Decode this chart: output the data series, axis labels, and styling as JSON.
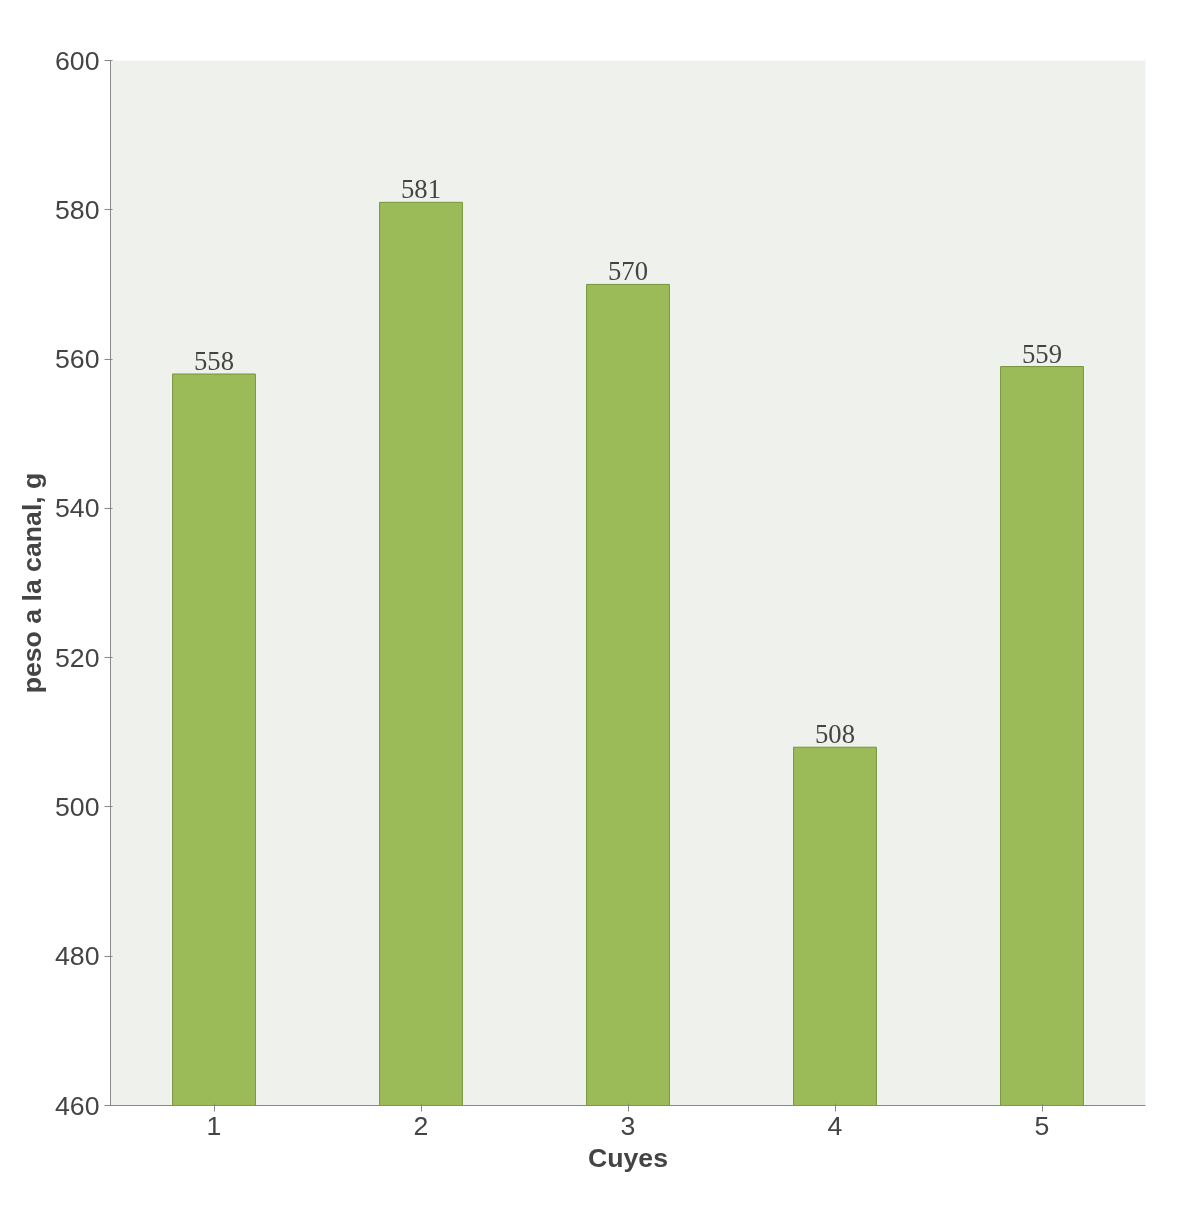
{
  "chart_data": {
    "type": "bar",
    "xlabel": "Cuyes",
    "ylabel": "peso a la canal, g",
    "categories": [
      "1",
      "2",
      "3",
      "4",
      "5"
    ],
    "values": [
      558,
      581,
      570,
      508,
      559
    ],
    "color": "#9bbb59",
    "ylim": [
      460,
      600
    ],
    "yticks": [
      460,
      480,
      500,
      520,
      540,
      560,
      580,
      600
    ],
    "grid": false,
    "data_labels": true
  }
}
